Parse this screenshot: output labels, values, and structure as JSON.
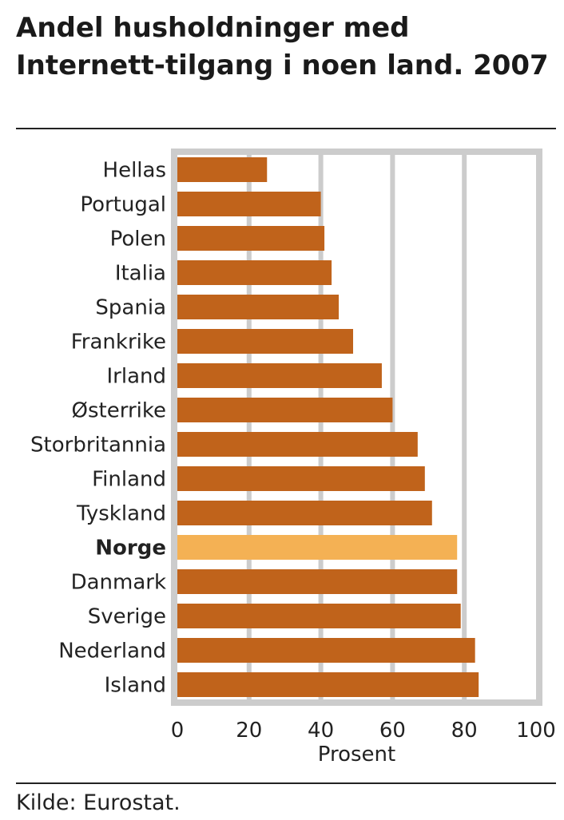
{
  "title": "Andel husholdninger med Internett-tilgang i noen land. 2007",
  "source": "Kilde: Eurostat.",
  "colors": {
    "bar": "#c0631b",
    "highlight": "#f4b154",
    "grid": "#cccccc"
  },
  "chart_data": {
    "type": "bar",
    "orientation": "horizontal",
    "categories": [
      "Hellas",
      "Portugal",
      "Polen",
      "Italia",
      "Spania",
      "Frankrike",
      "Irland",
      "Østerrike",
      "Storbritannia",
      "Finland",
      "Tyskland",
      "Norge",
      "Danmark",
      "Sverige",
      "Nederland",
      "Island"
    ],
    "values": [
      25,
      40,
      41,
      43,
      45,
      49,
      57,
      60,
      67,
      69,
      71,
      78,
      78,
      79,
      83,
      84
    ],
    "highlight": "Norge",
    "xlabel": "Prosent",
    "xlim": [
      0,
      100
    ],
    "xticks": [
      0,
      20,
      40,
      60,
      80,
      100
    ],
    "grid": true
  }
}
